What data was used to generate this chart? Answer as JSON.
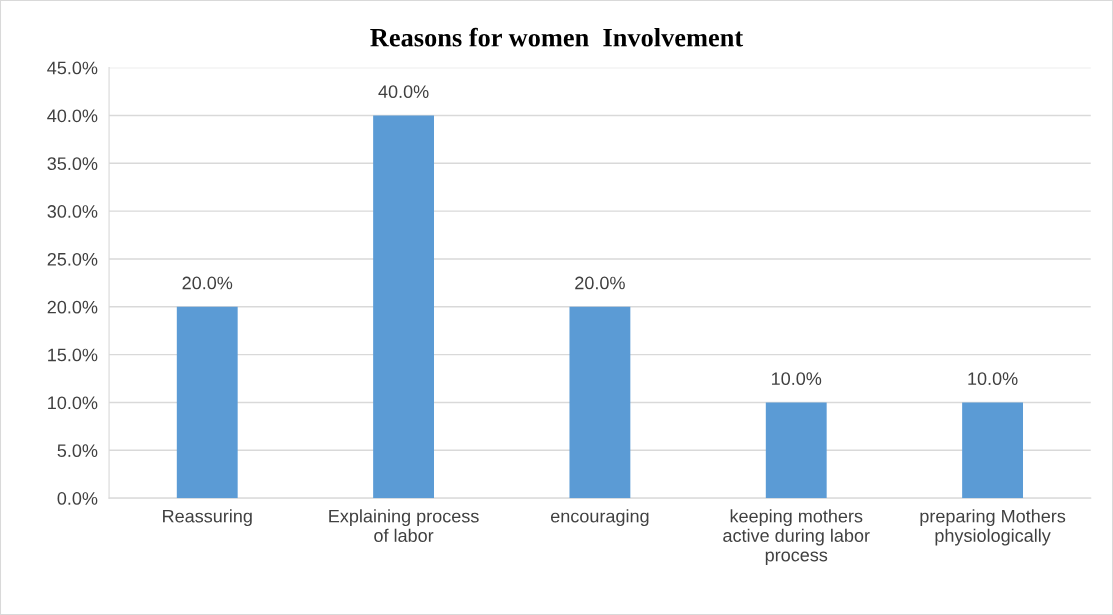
{
  "chart_data": {
    "type": "bar",
    "title": "Reasons for women  Involvement",
    "categories": [
      "Reassuring",
      "Explaining process of labor",
      "encouraging",
      "keeping mothers active during labor process",
      "preparing Mothers physiologically"
    ],
    "values": [
      20.0,
      40.0,
      20.0,
      10.0,
      10.0
    ],
    "value_labels": [
      "20.0%",
      "40.0%",
      "20.0%",
      "10.0%",
      "10.0%"
    ],
    "color": "#5b9bd5",
    "ylim": [
      0,
      45
    ],
    "yticks": [
      {
        "value": 0,
        "label": "0.0%"
      },
      {
        "value": 5,
        "label": "5.0%"
      },
      {
        "value": 10,
        "label": "10.0%"
      },
      {
        "value": 15,
        "label": "15.0%"
      },
      {
        "value": 20,
        "label": "20.0%"
      },
      {
        "value": 25,
        "label": "25.0%"
      },
      {
        "value": 30,
        "label": "30.0%"
      },
      {
        "value": 35,
        "label": "35.0%"
      },
      {
        "value": 40,
        "label": "40.0%"
      },
      {
        "value": 45,
        "label": "45.0%"
      }
    ],
    "grid": "y",
    "legend": false
  }
}
